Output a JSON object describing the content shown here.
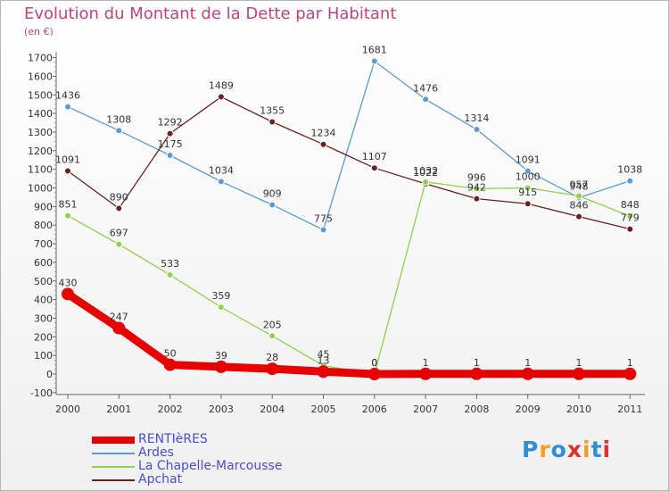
{
  "page": {
    "title": "Evolution du Montant de la Dette par Habitant",
    "unit": "(en €)",
    "brand": [
      "P",
      "r",
      "o",
      "x",
      "i",
      "t",
      "i"
    ],
    "brand_colors": [
      "#2f8fd6",
      "#f0a020",
      "#2f8fd6",
      "#e03030",
      "#f0a020",
      "#2f8fd6",
      "#e03030"
    ]
  },
  "chart_data": {
    "type": "line",
    "x": [
      "2000",
      "2001",
      "2002",
      "2003",
      "2004",
      "2005",
      "2006",
      "2007",
      "2008",
      "2009",
      "2010",
      "2011"
    ],
    "yticks": [
      -100,
      0,
      100,
      200,
      300,
      400,
      500,
      600,
      700,
      800,
      900,
      1000,
      1100,
      1200,
      1300,
      1400,
      1500,
      1600,
      1700
    ],
    "ylim": [
      -100,
      1700
    ],
    "grid": false,
    "legend_position": "bottom-left",
    "series": [
      {
        "name": "RENTIèRES",
        "color": "#e60000",
        "thick": true,
        "values": [
          430,
          247,
          50,
          39,
          28,
          13,
          0,
          1,
          1,
          1,
          1,
          1
        ]
      },
      {
        "name": "Ardes",
        "color": "#5b9bd5",
        "thick": false,
        "values": [
          1436,
          1308,
          1175,
          1034,
          909,
          775,
          1681,
          1476,
          1314,
          1091,
          948,
          1038
        ]
      },
      {
        "name": "La Chapelle-Marcousse",
        "color": "#8fd14f",
        "thick": false,
        "values": [
          851,
          697,
          533,
          359,
          205,
          45,
          0,
          1032,
          996,
          1000,
          957,
          848
        ]
      },
      {
        "name": "Apchat",
        "color": "#6b1f1f",
        "thick": false,
        "values": [
          1091,
          890,
          1292,
          1489,
          1355,
          1234,
          1107,
          1022,
          942,
          915,
          846,
          779
        ]
      }
    ]
  }
}
